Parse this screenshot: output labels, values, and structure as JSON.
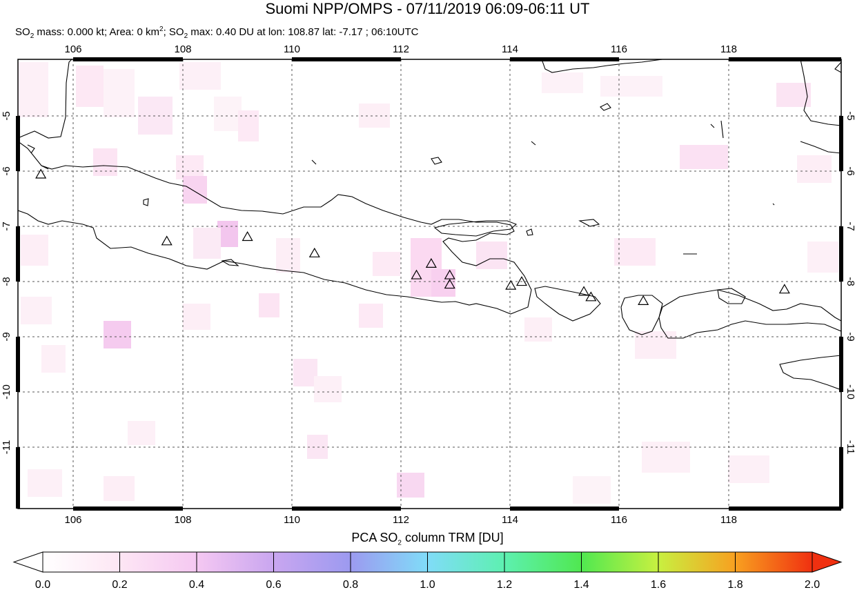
{
  "title": "Suomi NPP/OMPS - 07/11/2019 06:09-06:11 UT",
  "subtitle": {
    "mass_prefix": "SO",
    "mass_sub": "2",
    "mass_text": " mass: 0.000 kt; Area: 0 km",
    "area_sup": "2",
    "max_prefix": "; SO",
    "max_sub": "2",
    "max_text": " max: 0.40 DU at lon: 108.87 lat: -7.17 ; 06:10UTC"
  },
  "map": {
    "lon_range": [
      105.0,
      120.1
    ],
    "lat_range": [
      -12.2,
      -4.0
    ],
    "lon_ticks": [
      "106",
      "108",
      "110",
      "112",
      "114",
      "116",
      "118"
    ],
    "lat_ticks": [
      "-5",
      "-6",
      "-7",
      "-8",
      "-9",
      "-10",
      "-11"
    ],
    "volcanoes": [
      {
        "lon": 105.42,
        "lat": -6.1
      },
      {
        "lon": 107.73,
        "lat": -7.32
      },
      {
        "lon": 109.21,
        "lat": -7.24
      },
      {
        "lon": 110.44,
        "lat": -7.54
      },
      {
        "lon": 112.31,
        "lat": -7.94
      },
      {
        "lon": 112.58,
        "lat": -7.73
      },
      {
        "lon": 112.92,
        "lat": -7.94
      },
      {
        "lon": 112.92,
        "lat": -8.11
      },
      {
        "lon": 114.04,
        "lat": -8.13
      },
      {
        "lon": 114.24,
        "lat": -8.06
      },
      {
        "lon": 115.38,
        "lat": -8.24
      },
      {
        "lon": 115.51,
        "lat": -8.34
      },
      {
        "lon": 116.47,
        "lat": -8.41
      },
      {
        "lon": 119.06,
        "lat": -8.2
      }
    ]
  },
  "colorbar": {
    "title_prefix": "PCA SO",
    "title_sub": "2",
    "title_suffix": " column TRM [DU]",
    "labels": [
      "0.0",
      "0.2",
      "0.4",
      "0.6",
      "0.8",
      "1.0",
      "1.2",
      "1.4",
      "1.6",
      "1.8",
      "2.0"
    ],
    "range": [
      0.0,
      2.0
    ]
  }
}
